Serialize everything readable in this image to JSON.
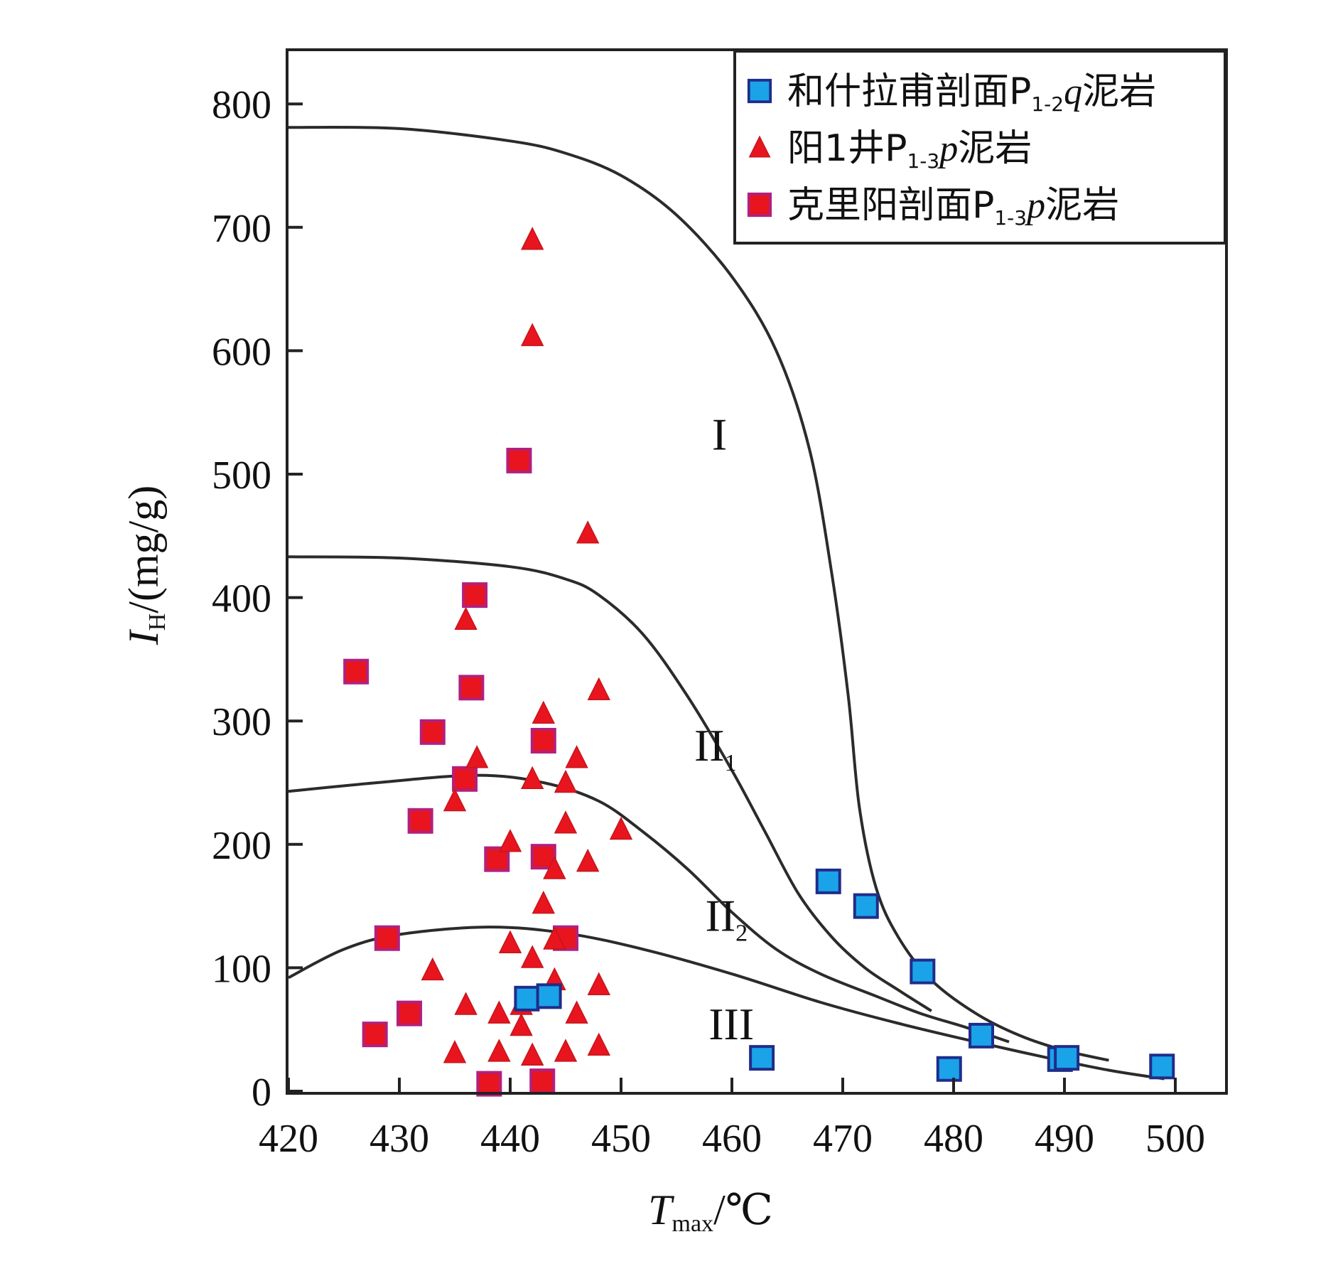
{
  "chart_data": {
    "type": "scatter",
    "xlabel": {
      "main": "T",
      "sub": "max",
      "unit": "/℃"
    },
    "ylabel": {
      "main": "I",
      "sub": "H",
      "unit": "/(mg/g)"
    },
    "xlim": [
      420,
      507
    ],
    "ylim": [
      0,
      850
    ],
    "x_ticks": [
      420,
      430,
      440,
      450,
      460,
      470,
      480,
      490,
      500
    ],
    "y_ticks": [
      0,
      100,
      200,
      300,
      400,
      500,
      600,
      700,
      800
    ],
    "legend_position": "top-right",
    "series": [
      {
        "name": "和什拉甫剖面P1-2q泥岩",
        "label_parts": {
          "pre": "和什拉甫剖面P",
          "sub": "1-2",
          "ital": "q",
          "post": "泥岩"
        },
        "marker": "square",
        "color": "#1aa3e8",
        "border": "#1f2d8a",
        "points": [
          [
            441.5,
            75
          ],
          [
            443.5,
            77
          ],
          [
            462.7,
            27
          ],
          [
            468.7,
            170
          ],
          [
            472.1,
            150
          ],
          [
            477.2,
            97
          ],
          [
            479.6,
            18
          ],
          [
            482.5,
            45
          ],
          [
            489.6,
            26
          ],
          [
            490.2,
            27
          ],
          [
            498.8,
            20
          ]
        ]
      },
      {
        "name": "阳1井P1-3p泥岩",
        "label_parts": {
          "pre": "阳1井P",
          "sub": "1-3",
          "ital": "p",
          "post": "泥岩"
        },
        "marker": "triangle",
        "color": "#e8141e",
        "border": "#c5161c",
        "points": [
          [
            442,
            690
          ],
          [
            442,
            612
          ],
          [
            447,
            452
          ],
          [
            436,
            382
          ],
          [
            448,
            325
          ],
          [
            443,
            306
          ],
          [
            437,
            270
          ],
          [
            446,
            270
          ],
          [
            442,
            253
          ],
          [
            445,
            250
          ],
          [
            435,
            235
          ],
          [
            445,
            217
          ],
          [
            450,
            212
          ],
          [
            440,
            202
          ],
          [
            447,
            186
          ],
          [
            444,
            180
          ],
          [
            443,
            152
          ],
          [
            440,
            120
          ],
          [
            444,
            123
          ],
          [
            442,
            108
          ],
          [
            433,
            98
          ],
          [
            444,
            90
          ],
          [
            448,
            86
          ],
          [
            436,
            70
          ],
          [
            441,
            70
          ],
          [
            439,
            63
          ],
          [
            446,
            63
          ],
          [
            441,
            53
          ],
          [
            448,
            37
          ],
          [
            435,
            31
          ],
          [
            439,
            32
          ],
          [
            442,
            29
          ],
          [
            445,
            32
          ]
        ]
      },
      {
        "name": "克里阳剖面P1-3p泥岩",
        "label_parts": {
          "pre": "克里阳剖面P",
          "sub": "1-3",
          "ital": "p",
          "post": "泥岩"
        },
        "marker": "square",
        "color": "#e8141e",
        "border": "#b2207e",
        "points": [
          [
            440.8,
            511
          ],
          [
            436.8,
            402
          ],
          [
            426.1,
            340
          ],
          [
            436.5,
            327
          ],
          [
            433.0,
            291
          ],
          [
            443.0,
            284
          ],
          [
            435.9,
            253
          ],
          [
            431.9,
            219
          ],
          [
            438.8,
            188
          ],
          [
            443.0,
            190
          ],
          [
            428.9,
            124
          ],
          [
            445.0,
            124
          ],
          [
            427.8,
            46
          ],
          [
            430.9,
            63
          ],
          [
            438.1,
            6
          ],
          [
            442.9,
            8
          ]
        ]
      }
    ],
    "boundary_curves": [
      {
        "name": "I/II1",
        "points": [
          [
            420,
            781
          ],
          [
            430,
            780
          ],
          [
            440,
            770
          ],
          [
            445,
            760
          ],
          [
            450,
            742
          ],
          [
            455,
            710
          ],
          [
            460,
            660
          ],
          [
            464,
            600
          ],
          [
            467,
            520
          ],
          [
            469,
            420
          ],
          [
            470.5,
            320
          ],
          [
            471.5,
            230
          ],
          [
            473,
            165
          ],
          [
            475,
            125
          ],
          [
            478,
            90
          ],
          [
            482,
            63
          ],
          [
            486,
            45
          ],
          [
            490,
            33
          ],
          [
            494,
            25
          ]
        ]
      },
      {
        "name": "II1/II2",
        "points": [
          [
            420,
            433
          ],
          [
            430,
            432
          ],
          [
            440,
            425
          ],
          [
            445,
            415
          ],
          [
            448,
            402
          ],
          [
            452,
            370
          ],
          [
            456,
            320
          ],
          [
            460,
            260
          ],
          [
            463,
            210
          ],
          [
            466,
            160
          ],
          [
            469,
            125
          ],
          [
            472,
            100
          ],
          [
            475,
            82
          ],
          [
            478,
            65
          ]
        ]
      },
      {
        "name": "II2/III",
        "points": [
          [
            420,
            243
          ],
          [
            428,
            250
          ],
          [
            437,
            256
          ],
          [
            443,
            250
          ],
          [
            448,
            235
          ],
          [
            452,
            210
          ],
          [
            456,
            180
          ],
          [
            460,
            145
          ],
          [
            464,
            115
          ],
          [
            468,
            95
          ],
          [
            473,
            77
          ],
          [
            477,
            63
          ],
          [
            481,
            52
          ],
          [
            485,
            40
          ]
        ]
      },
      {
        "name": "III lower",
        "points": [
          [
            420,
            92
          ],
          [
            425,
            115
          ],
          [
            430,
            127
          ],
          [
            438,
            133
          ],
          [
            445,
            128
          ],
          [
            452,
            115
          ],
          [
            460,
            95
          ],
          [
            468,
            72
          ],
          [
            475,
            55
          ],
          [
            482,
            40
          ],
          [
            488,
            28
          ],
          [
            494,
            17
          ],
          [
            499,
            10
          ]
        ]
      }
    ],
    "region_labels": [
      {
        "main": "I",
        "sub": "",
        "x": 458.2,
        "y": 520
      },
      {
        "main": "II",
        "sub": "1",
        "x": 456.6,
        "y": 268
      },
      {
        "main": "II",
        "sub": "2",
        "x": 457.6,
        "y": 130
      },
      {
        "main": "III",
        "sub": "",
        "x": 457.9,
        "y": 42
      }
    ]
  }
}
